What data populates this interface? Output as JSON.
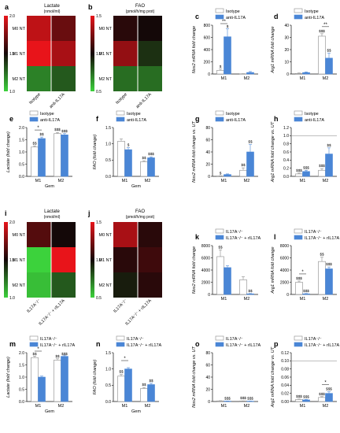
{
  "figure": {
    "panels": {
      "a": {
        "letter": "a",
        "title": "Lactate",
        "subtitle": "(nmol/ml)"
      },
      "b": {
        "letter": "b",
        "title": "FAO",
        "subtitle": "(pmol/h/mg prot)"
      },
      "i": {
        "letter": "i",
        "title": "Lactate",
        "subtitle": "(nmol/ml)"
      },
      "j": {
        "letter": "j",
        "title": "FAO",
        "subtitle": "(pmol/h/mg prot)"
      }
    },
    "colors": {
      "blue": "#4a86d6",
      "white": "#ffffff",
      "outline": "#8a8a8a",
      "heat_high": "#e8141a",
      "heat_mid": "#140808",
      "heat_low": "#3cd23c"
    }
  },
  "chart_data": [
    {
      "panel": "a",
      "type": "heatmap",
      "title": "Lactate",
      "subtitle": "(nmol/ml)",
      "rows": [
        "M0 NT",
        "M1 NT",
        "M2 NT"
      ],
      "columns": [
        "Isotype",
        "anti-IL17A"
      ],
      "values": [
        [
          1.9,
          1.7
        ],
        [
          2.3,
          1.85
        ],
        [
          1.2,
          1.3
        ]
      ],
      "colorbar_ticks": [
        1.0,
        1.5,
        2.0
      ]
    },
    {
      "panel": "b",
      "type": "heatmap",
      "title": "FAO",
      "subtitle": "(pmol/h/mg prot)",
      "rows": [
        "M0 NT",
        "M1 NT",
        "M2 NT"
      ],
      "columns": [
        "Isotype",
        "anti-IL17A"
      ],
      "values": [
        [
          1.05,
          1.0
        ],
        [
          1.3,
          0.9
        ],
        [
          0.75,
          0.75
        ]
      ],
      "colorbar_ticks": [
        0.5,
        1.0,
        1.5
      ]
    },
    {
      "panel": "c",
      "type": "bar",
      "categories": [
        "M1",
        "M2"
      ],
      "ylabel": "Nos2 mRNA fold change",
      "yticks": [
        0,
        200,
        400,
        600,
        800
      ],
      "ylim": [
        0,
        800
      ],
      "series": [
        {
          "name": "Isotype",
          "values": [
            60,
            3
          ],
          "errors": [
            20,
            2
          ]
        },
        {
          "name": "anti-IL17A",
          "values": [
            610,
            25
          ],
          "errors": [
            130,
            15
          ]
        }
      ],
      "annotations": [
        {
          "category": 0,
          "series": 0,
          "text": "$"
        },
        {
          "category": 0,
          "series": 1,
          "text": "$"
        },
        {
          "category": 0,
          "span": true,
          "text": "**"
        }
      ]
    },
    {
      "panel": "d",
      "type": "bar",
      "categories": [
        "M1",
        "M2"
      ],
      "ylabel": "Arg1 mRNA fold change",
      "yticks": [
        0,
        10,
        20,
        30,
        40
      ],
      "ylim": [
        0,
        40
      ],
      "series": [
        {
          "name": "Isotype",
          "values": [
            0.5,
            31
          ],
          "errors": [
            0.3,
            2
          ]
        },
        {
          "name": "anti-IL17A",
          "values": [
            1.2,
            13
          ],
          "errors": [
            0.5,
            4
          ]
        }
      ],
      "annotations": [
        {
          "category": 1,
          "series": 0,
          "text": "$$$"
        },
        {
          "category": 1,
          "series": 1,
          "text": "$$"
        },
        {
          "category": 1,
          "span": true,
          "text": "**"
        }
      ]
    },
    {
      "panel": "e",
      "type": "bar",
      "categories": [
        "M1",
        "M2"
      ],
      "xlabel": "Gem",
      "ylabel": "Lactate (fold change)",
      "yticks": [
        0.0,
        0.5,
        1.0,
        1.5,
        2.0
      ],
      "ylim": [
        0,
        2
      ],
      "series": [
        {
          "name": "Isotype",
          "values": [
            1.2,
            1.75
          ],
          "errors": [
            0.05,
            0.05
          ]
        },
        {
          "name": "anti-IL17A",
          "values": [
            1.55,
            1.7
          ],
          "errors": [
            0.06,
            0.05
          ]
        }
      ],
      "annotations": [
        {
          "category": 0,
          "series": 0,
          "text": "$$"
        },
        {
          "category": 0,
          "series": 1,
          "text": "$$"
        },
        {
          "category": 1,
          "series": 0,
          "text": "$$$"
        },
        {
          "category": 1,
          "series": 1,
          "text": "$$$"
        },
        {
          "category": 0,
          "span": true,
          "text": "*"
        }
      ]
    },
    {
      "panel": "f",
      "type": "bar",
      "categories": [
        "M1",
        "M2"
      ],
      "xlabel": "Gem",
      "ylabel": "FAO (fold change)",
      "yticks": [
        0.0,
        0.5,
        1.0,
        1.5
      ],
      "ylim": [
        0,
        1.5
      ],
      "series": [
        {
          "name": "Isotype",
          "values": [
            1.08,
            0.45
          ],
          "errors": [
            0.07,
            0.03
          ]
        },
        {
          "name": "anti-IL17A",
          "values": [
            0.82,
            0.57
          ],
          "errors": [
            0.06,
            0.03
          ]
        }
      ],
      "annotations": [
        {
          "category": 0,
          "series": 1,
          "text": "$"
        },
        {
          "category": 1,
          "series": 0,
          "text": "$$"
        },
        {
          "category": 1,
          "series": 1,
          "text": "$$$"
        }
      ]
    },
    {
      "panel": "g",
      "type": "bar",
      "categories": [
        "M1",
        "M2"
      ],
      "ylabel": "Nos2 mRNA fold change vs. UT",
      "yticks": [
        0,
        20,
        40,
        60,
        80
      ],
      "ylim": [
        0,
        80
      ],
      "series": [
        {
          "name": "Isotype",
          "values": [
            0.5,
            10
          ],
          "errors": [
            0.3,
            4
          ]
        },
        {
          "name": "anti-IL17A",
          "values": [
            3,
            40
          ],
          "errors": [
            1,
            12
          ]
        }
      ],
      "annotations": [
        {
          "category": 0,
          "series": 0,
          "text": "$"
        },
        {
          "category": 1,
          "series": 0,
          "text": "$$"
        },
        {
          "category": 1,
          "series": 1,
          "text": "$$"
        }
      ]
    },
    {
      "panel": "h",
      "type": "bar",
      "categories": [
        "M1",
        "M2"
      ],
      "ylabel": "Arg1 mRNA fold change vs. UT",
      "yticks": [
        0.0,
        0.2,
        0.4,
        0.6,
        0.8,
        1.0,
        1.2
      ],
      "ylim": [
        0,
        1.2
      ],
      "reference_line": 1.0,
      "series": [
        {
          "name": "Isotype",
          "values": [
            0.06,
            0.15
          ],
          "errors": [
            0.02,
            0.04
          ]
        },
        {
          "name": "anti-IL17A",
          "values": [
            0.12,
            0.55
          ],
          "errors": [
            0.03,
            0.15
          ]
        }
      ],
      "annotations": [
        {
          "category": 0,
          "series": 0,
          "text": "$$$"
        },
        {
          "category": 0,
          "series": 1,
          "text": "$$$"
        },
        {
          "category": 1,
          "series": 0,
          "text": "$$$"
        },
        {
          "category": 1,
          "series": 1,
          "text": "$$"
        }
      ]
    },
    {
      "panel": "i",
      "type": "heatmap",
      "title": "Lactate",
      "subtitle": "(nmol/ml)",
      "rows": [
        "M0 NT",
        "M1 NT",
        "M2 NT"
      ],
      "columns": [
        "IL17A⁻/⁻",
        "IL17A⁻/⁻ + rIL17A"
      ],
      "values": [
        [
          1.65,
          1.5
        ],
        [
          0.95,
          2.15
        ],
        [
          1.05,
          1.3
        ]
      ],
      "colorbar_ticks": [
        1.0,
        1.5,
        2.0
      ]
    },
    {
      "panel": "j",
      "type": "heatmap",
      "title": "FAO",
      "subtitle": "(pmol/h/mg prot)",
      "rows": [
        "M0 NT",
        "M1 NT",
        "M2 NT"
      ],
      "columns": [
        "IL17A⁻/⁻",
        "IL17A⁻/⁻ + rIL17A"
      ],
      "values": [
        [
          1.35,
          1.05
        ],
        [
          1.05,
          1.1
        ],
        [
          0.95,
          1.05
        ]
      ],
      "colorbar_ticks": [
        0.5,
        1.0,
        1.5
      ]
    },
    {
      "panel": "k",
      "type": "bar",
      "categories": [
        "M1",
        "M2"
      ],
      "ylabel": "Nos2 mRNA fold change",
      "yticks": [
        0,
        2000,
        4000,
        6000,
        8000
      ],
      "ylim": [
        0,
        8000
      ],
      "series": [
        {
          "name": "IL17A⁻/⁻",
          "values": [
            6200,
            2400
          ],
          "errors": [
            1100,
            500
          ]
        },
        {
          "name": "IL17A⁻/⁻ + rIL17A",
          "values": [
            4400,
            100
          ],
          "errors": [
            300,
            50
          ]
        }
      ],
      "annotations": [
        {
          "category": 0,
          "series": 0,
          "text": "$$"
        },
        {
          "category": 1,
          "series": 1,
          "text": "$$"
        }
      ]
    },
    {
      "panel": "l",
      "type": "bar",
      "categories": [
        "M1",
        "M2"
      ],
      "ylabel": "Arg1 mRNA fold change",
      "yticks": [
        0,
        2000,
        4000,
        6000,
        8000
      ],
      "ylim": [
        0,
        8000
      ],
      "series": [
        {
          "name": "IL17A⁻/⁻",
          "values": [
            2000,
            5400
          ],
          "errors": [
            200,
            700
          ]
        },
        {
          "name": "IL17A⁻/⁻ + rIL17A",
          "values": [
            100,
            4200
          ],
          "errors": [
            50,
            300
          ]
        }
      ],
      "annotations": [
        {
          "category": 0,
          "series": 0,
          "text": "$$$"
        },
        {
          "category": 0,
          "series": 1,
          "text": "$$$"
        },
        {
          "category": 1,
          "series": 0,
          "text": "$$"
        },
        {
          "category": 1,
          "series": 1,
          "text": "$$$"
        },
        {
          "category": 0,
          "span": true,
          "text": "*"
        }
      ]
    },
    {
      "panel": "m",
      "type": "bar",
      "categories": [
        "M1",
        "M2"
      ],
      "xlabel": "Gem",
      "ylabel": "Lactate (fold change)",
      "yticks": [
        0.0,
        0.5,
        1.0,
        1.5,
        2.0
      ],
      "ylim": [
        0,
        2
      ],
      "series": [
        {
          "name": "IL17A⁻/⁻",
          "values": [
            1.8,
            1.7
          ],
          "errors": [
            0.06,
            0.05
          ]
        },
        {
          "name": "IL17A⁻/⁻ + rIL17A",
          "values": [
            1.0,
            1.85
          ],
          "errors": [
            0.04,
            0.05
          ]
        }
      ],
      "annotations": [
        {
          "category": 0,
          "series": 0,
          "text": "$$"
        },
        {
          "category": 1,
          "series": 0,
          "text": "$$"
        },
        {
          "category": 1,
          "series": 1,
          "text": "$$$"
        },
        {
          "category": 0,
          "span": true,
          "text": "*"
        }
      ]
    },
    {
      "panel": "n",
      "type": "bar",
      "categories": [
        "M1",
        "M2"
      ],
      "xlabel": "Gem",
      "ylabel": "FAO (fold change)",
      "yticks": [
        0.0,
        0.5,
        1.0,
        1.5
      ],
      "ylim": [
        0,
        1.5
      ],
      "series": [
        {
          "name": "IL17A⁻/⁻",
          "values": [
            0.78,
            0.4
          ],
          "errors": [
            0.05,
            0.03
          ]
        },
        {
          "name": "IL17A⁻/⁻ + rIL17A",
          "values": [
            1.0,
            0.52
          ],
          "errors": [
            0.04,
            0.04
          ]
        }
      ],
      "annotations": [
        {
          "category": 0,
          "series": 0,
          "text": "$$"
        },
        {
          "category": 1,
          "series": 0,
          "text": "$$"
        },
        {
          "category": 1,
          "series": 1,
          "text": "$$"
        },
        {
          "category": 0,
          "span": true,
          "text": "*"
        }
      ]
    },
    {
      "panel": "o",
      "type": "bar",
      "categories": [
        "M1",
        "M2"
      ],
      "ylabel": "Nos2 mRNA fold change vs. UT",
      "yticks": [
        0,
        20,
        40,
        60,
        80
      ],
      "ylim": [
        0,
        80
      ],
      "series": [
        {
          "name": "IL17A⁻/⁻",
          "values": [
            1.0,
            0.8
          ],
          "errors": [
            0.3,
            0.2
          ]
        },
        {
          "name": "IL17A⁻/⁻ + rIL17A",
          "values": [
            0.6,
            0.5
          ],
          "errors": [
            0.2,
            0.2
          ]
        }
      ],
      "annotations": [
        {
          "category": 0,
          "series": 1,
          "text": "$$$"
        },
        {
          "category": 1,
          "series": 0,
          "text": "$$$"
        },
        {
          "category": 1,
          "series": 1,
          "text": "$$$"
        }
      ]
    },
    {
      "panel": "p",
      "type": "bar",
      "categories": [
        "M1",
        "M2"
      ],
      "ylabel": "Arg1 mRNA fold change vs. UT",
      "yticks": [
        0.0,
        0.02,
        0.04,
        0.06,
        0.08,
        0.1,
        0.12
      ],
      "ylim": [
        0,
        0.12
      ],
      "reference_line": 0.1,
      "series": [
        {
          "name": "IL17A⁻/⁻",
          "values": [
            0.005,
            0.01
          ],
          "errors": [
            0.001,
            0.002
          ]
        },
        {
          "name": "IL17A⁻/⁻ + rIL17A",
          "values": [
            0.004,
            0.02
          ],
          "errors": [
            0.001,
            0.004
          ]
        }
      ],
      "annotations": [
        {
          "category": 0,
          "series": 0,
          "text": "$$$"
        },
        {
          "category": 0,
          "series": 1,
          "text": "$$$"
        },
        {
          "category": 1,
          "series": 0,
          "text": "$$$"
        },
        {
          "category": 1,
          "series": 1,
          "text": "$$$"
        },
        {
          "category": 1,
          "span": true,
          "text": "*"
        }
      ]
    }
  ]
}
